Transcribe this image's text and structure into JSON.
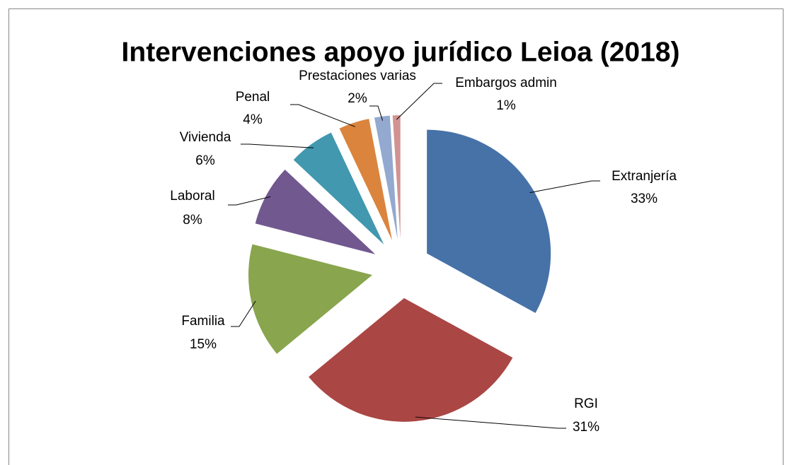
{
  "chart_data": {
    "type": "pie",
    "title": "Intervenciones apoyo jurídico Leioa (2018)",
    "categories": [
      "Extranjería",
      "RGI",
      "Familia",
      "Laboral",
      "Vivienda",
      "Penal",
      "Prestaciones varias",
      "Embargos admin"
    ],
    "values": [
      33,
      31,
      15,
      8,
      6,
      4,
      2,
      1
    ],
    "value_labels": [
      "33%",
      "31%",
      "15%",
      "8%",
      "6%",
      "4%",
      "2%",
      "1%"
    ],
    "colors": [
      "#4672a8",
      "#aa4644",
      "#89a54e",
      "#71588f",
      "#4198af",
      "#db843d",
      "#93a9cf",
      "#d19392"
    ]
  }
}
